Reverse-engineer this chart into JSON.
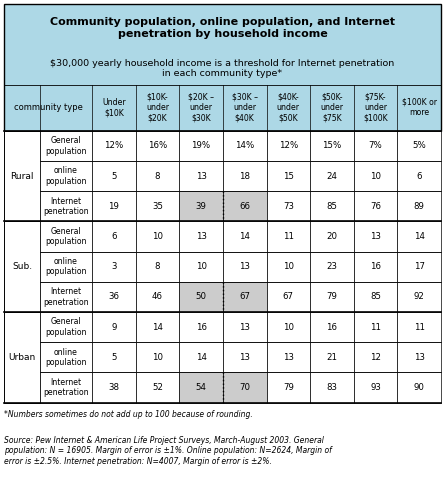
{
  "title": "Community population, online population, and Internet\npenetration by household income",
  "subtitle": "$30,000 yearly household income is a threshold for Internet penetration\nin each community type*",
  "col_headers": [
    "Under\n$10K",
    "$10K-\nunder\n$20K",
    "$20K –\nunder\n$30K",
    "$30K –\nunder\n$40K",
    "$40K-\nunder\n$50K",
    "$50K-\nunder\n$75K",
    "$75K-\nunder\n$100K",
    "$100K or\nmore"
  ],
  "community_types": [
    "Rural",
    "Sub.",
    "Urban"
  ],
  "row_types": [
    "General\npopulation",
    "online\npopulation",
    "Internet\npenetration"
  ],
  "data": {
    "Rural": {
      "General\npopulation": [
        "12%",
        "16%",
        "19%",
        "14%",
        "12%",
        "15%",
        "7%",
        "5%"
      ],
      "online\npopulation": [
        "5",
        "8",
        "13",
        "18",
        "15",
        "24",
        "10",
        "6"
      ],
      "Internet\npenetration": [
        "19",
        "35",
        "39",
        "66",
        "73",
        "85",
        "76",
        "89"
      ]
    },
    "Sub.": {
      "General\npopulation": [
        "6",
        "10",
        "13",
        "14",
        "11",
        "20",
        "13",
        "14"
      ],
      "online\npopulation": [
        "3",
        "8",
        "10",
        "13",
        "10",
        "23",
        "16",
        "17"
      ],
      "Internet\npenetration": [
        "36",
        "46",
        "50",
        "67",
        "67",
        "79",
        "85",
        "92"
      ]
    },
    "Urban": {
      "General\npopulation": [
        "9",
        "14",
        "16",
        "13",
        "10",
        "16",
        "11",
        "11"
      ],
      "online\npopulation": [
        "5",
        "10",
        "14",
        "13",
        "13",
        "21",
        "12",
        "13"
      ],
      "Internet\npenetration": [
        "38",
        "52",
        "54",
        "70",
        "79",
        "83",
        "93",
        "90"
      ]
    }
  },
  "header_bg": "#add8e6",
  "internet_pen_bg": "#cccccc",
  "highlight_cols": [
    2,
    3
  ],
  "footnote1": "*Numbers sometimes do not add up to 100 because of rounding.",
  "footnote2": "Source: Pew Internet & American Life Project Surveys, March-August 2003. General\npopulation: N = 16905. Margin of error is ±1%. Online population: N=2624, Margin of\nerror is ±2.5%. Internet penetration: N=4007, Margin of error is ±2%.",
  "figw": 4.45,
  "figh": 4.79,
  "dpi": 100
}
